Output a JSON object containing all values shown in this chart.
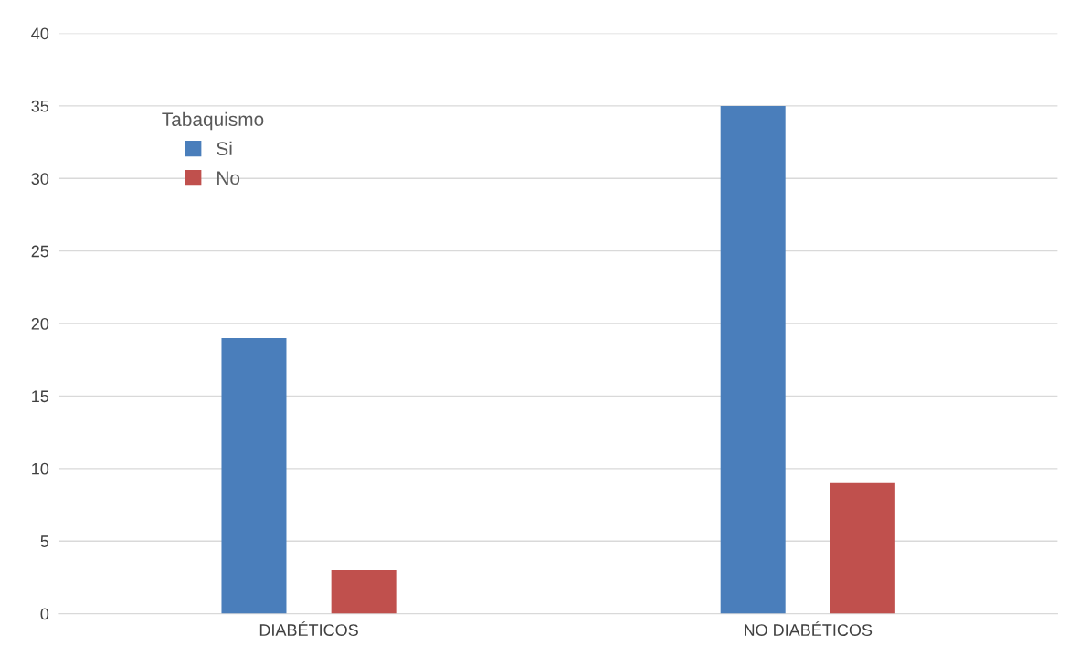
{
  "chart_data": {
    "type": "bar",
    "categories": [
      "DIABÉTICOS",
      "NO DIABÉTICOS"
    ],
    "legend_title": "Tabaquismo",
    "series": [
      {
        "name": "Si",
        "color": "#4a7ebb",
        "values": [
          19,
          35
        ]
      },
      {
        "name": "No",
        "color": "#c0504d",
        "values": [
          3,
          9
        ]
      }
    ],
    "ylim": [
      0,
      40
    ],
    "yticks": [
      0,
      5,
      10,
      15,
      20,
      25,
      30,
      35,
      40
    ],
    "grid": "y",
    "legend": "top left"
  }
}
